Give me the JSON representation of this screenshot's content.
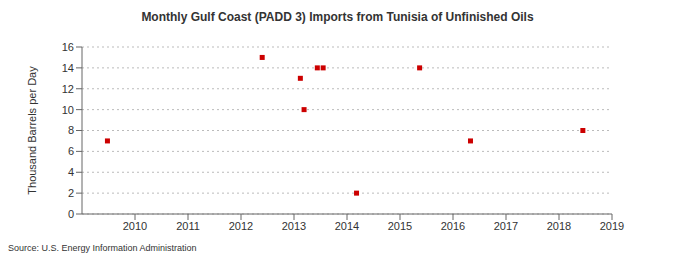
{
  "chart_data": {
    "type": "scatter",
    "title": "Monthly Gulf Coast (PADD 3) Imports from Tunisia of Unfinished Oils",
    "y_label": "Thousand Barrels per Day",
    "source": "Source: U.S. Energy Information Administration",
    "x": [
      2009.48,
      2012.4,
      2013.12,
      2013.19,
      2013.44,
      2013.55,
      2014.18,
      2015.37,
      2016.33,
      2018.45
    ],
    "values": [
      7,
      15,
      13,
      10,
      14,
      14,
      2,
      14,
      7,
      8
    ],
    "color": "#cc0000",
    "marker": "square",
    "xlim": [
      2009,
      2019
    ],
    "xticks": [
      2010,
      2011,
      2012,
      2013,
      2014,
      2015,
      2016,
      2017,
      2018,
      2019
    ],
    "ylim": [
      0,
      16
    ],
    "yticks": [
      0,
      2,
      4,
      6,
      8,
      10,
      12,
      14,
      16
    ],
    "grid": true
  }
}
